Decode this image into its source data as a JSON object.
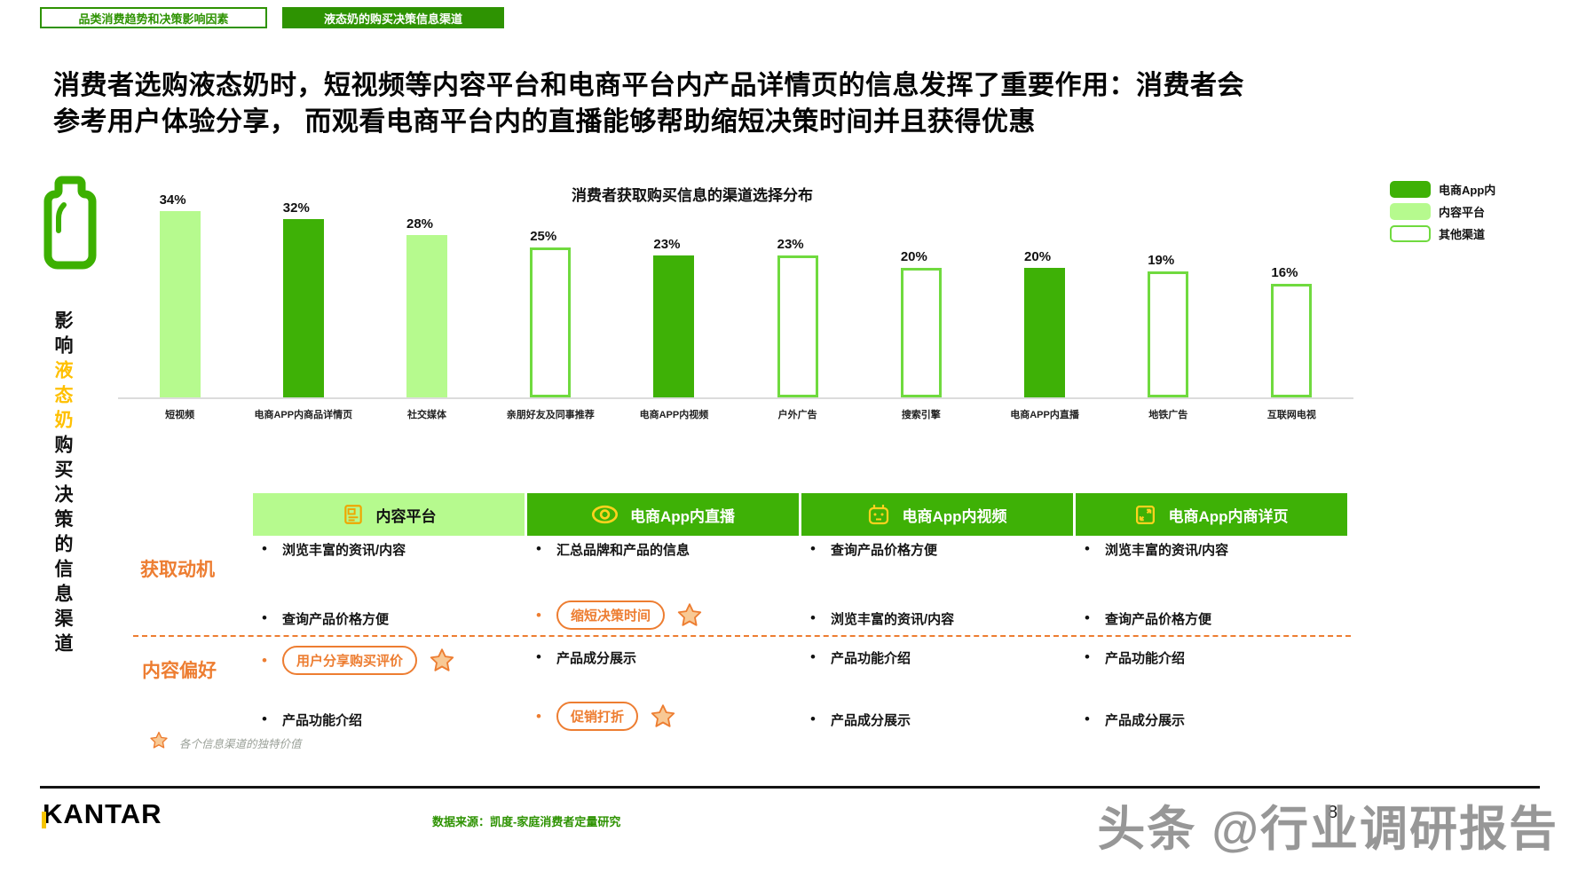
{
  "tabs": [
    {
      "label": "品类消费趋势和决策影响因素",
      "active": false
    },
    {
      "label": "液态奶的购买决策信息渠道",
      "active": true
    }
  ],
  "headline": {
    "line1": "消费者选购液态奶时，短视频等内容平台和电商平台内产品详情页的信息发挥了重要作用：消费者会",
    "line2": "参考用户体验分享， 而观看电商平台内的直播能够帮助缩短决策时间并且获得优惠"
  },
  "chart_data": {
    "type": "bar",
    "title": "消费者获取购买信息的渠道选择分布",
    "xlabel": "",
    "ylabel": "",
    "unit": "%",
    "ylim": [
      0,
      40
    ],
    "grid": false,
    "legend_position": "top-right",
    "categories": [
      "短视频",
      "电商APP内商品详情页",
      "社交媒体",
      "亲朋好友及同事推荐",
      "电商APP内视频",
      "户外广告",
      "搜索引擎",
      "电商APP内直播",
      "地铁广告",
      "互联网电视"
    ],
    "values": [
      34,
      32,
      28,
      25,
      23,
      23,
      20,
      20,
      19,
      16
    ],
    "groups": [
      "content",
      "ecom",
      "content",
      "other",
      "ecom",
      "other",
      "other",
      "ecom",
      "other",
      "other"
    ],
    "legend": [
      {
        "label": "电商App内",
        "style": "ecom"
      },
      {
        "label": "内容平台",
        "style": "content"
      },
      {
        "label": "其他渠道",
        "style": "other"
      }
    ],
    "colors": {
      "ecom": "#3EB106",
      "content": "#B6FA8E",
      "other_border": "#70DA3F"
    }
  },
  "sidebar": {
    "icon": "milk-bottle-icon",
    "text_black1": "影响",
    "text_yellow": "液态奶",
    "text_black2": "购买决策的信息渠道"
  },
  "matrix": {
    "row_labels": [
      "获取动机",
      "内容偏好"
    ],
    "columns": [
      {
        "header": "内容平台",
        "icon": "news-icon",
        "style": "light"
      },
      {
        "header": "电商App内直播",
        "icon": "eye-icon",
        "style": "dark"
      },
      {
        "header": "电商App内视频",
        "icon": "robot-icon",
        "style": "dark"
      },
      {
        "header": "电商App内商详页",
        "icon": "expand-icon",
        "style": "dark"
      }
    ],
    "rows": [
      [
        [
          {
            "text": "浏览丰富的资讯/内容"
          },
          {
            "text": "查询产品价格方便"
          }
        ],
        [
          {
            "text": "汇总品牌和产品的信息"
          },
          {
            "text": "缩短决策时间",
            "highlight": true,
            "star": true
          }
        ],
        [
          {
            "text": "查询产品价格方便"
          },
          {
            "text": "浏览丰富的资讯/内容"
          }
        ],
        [
          {
            "text": "浏览丰富的资讯/内容"
          },
          {
            "text": "查询产品价格方便"
          }
        ]
      ],
      [
        [
          {
            "text": "用户分享购买评价",
            "highlight": true,
            "star": true
          },
          {
            "text": "产品功能介绍"
          }
        ],
        [
          {
            "text": "产品成分展示"
          },
          {
            "text": "促销打折",
            "highlight": true,
            "star": true
          }
        ],
        [
          {
            "text": "产品功能介绍"
          },
          {
            "text": "产品成分展示"
          }
        ],
        [
          {
            "text": "产品功能介绍"
          },
          {
            "text": "产品成分展示"
          }
        ]
      ]
    ],
    "footnote": "各个信息渠道的独特价值"
  },
  "footer": {
    "logo": "KANTAR",
    "source": "数据来源：凯度-家庭消费者定量研究",
    "watermark": "头条 @行业调研报告",
    "page_number": "8"
  },
  "accent_colors": {
    "dark_green": "#3EB106",
    "light_green": "#B6FA8E",
    "outline_green": "#70DA3F",
    "orange": "#ED7D31",
    "yellow": "#FFC000",
    "footer_green": "#2E9302"
  }
}
